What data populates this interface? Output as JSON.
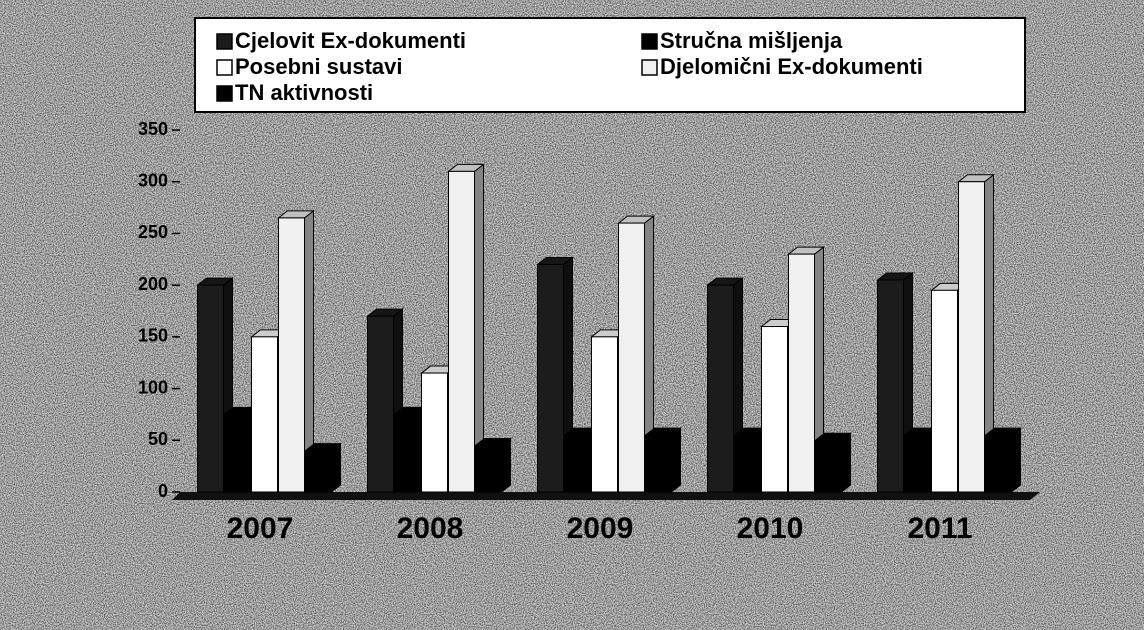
{
  "chart_data": {
    "type": "bar",
    "categories": [
      "2007",
      "2008",
      "2009",
      "2010",
      "2011"
    ],
    "series": [
      {
        "name": "Cjelovit Ex-dokumenti",
        "color": "#1c1c1c",
        "values": [
          200,
          170,
          220,
          200,
          205
        ]
      },
      {
        "name": "Stručna mišljenja",
        "color": "#000000",
        "values": [
          75,
          75,
          55,
          55,
          55
        ]
      },
      {
        "name": "Posebni sustavi",
        "color": "#ffffff",
        "values": [
          150,
          115,
          150,
          160,
          195
        ]
      },
      {
        "name": "Djelomični Ex-dokumenti",
        "color": "#f0f0f0",
        "values": [
          265,
          310,
          260,
          230,
          300
        ]
      },
      {
        "name": "TN aktivnosti",
        "color": "#000000",
        "values": [
          40,
          45,
          55,
          50,
          55
        ]
      }
    ],
    "ylim": [
      0,
      350
    ],
    "yticks": [
      0,
      50,
      100,
      150,
      200,
      250,
      300,
      350
    ],
    "legend": "top"
  }
}
